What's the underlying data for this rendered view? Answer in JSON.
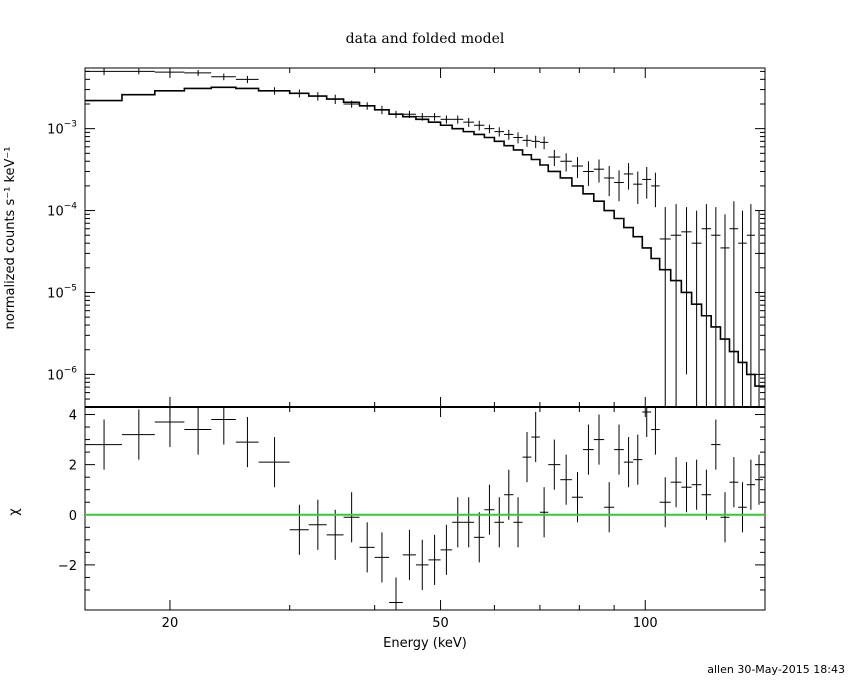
{
  "chart_data": [
    {
      "type": "scatter",
      "title": "data and folded model",
      "ylabel": "normalized counts s⁻¹ keV⁻¹",
      "yscale": "log",
      "xscale": "log",
      "xlim": [
        15,
        150
      ],
      "ylim": [
        4e-07,
        0.0055
      ],
      "yticklabels": [
        {
          "v": 0.001,
          "mant": "10",
          "exp": "−3"
        },
        {
          "v": 0.0001,
          "mant": "10",
          "exp": "−4"
        },
        {
          "v": 1e-05,
          "mant": "10",
          "exp": "−5"
        },
        {
          "v": 1e-06,
          "mant": "10",
          "exp": "−6"
        }
      ],
      "series": [
        {
          "kind": "data-crosses",
          "points": [
            [
              16.0,
              15.0,
              17.0,
              0.005,
              0.0045,
              0.0055
            ],
            [
              18.0,
              17.0,
              19.0,
              0.005,
              0.0046,
              0.0054
            ],
            [
              20.0,
              19.0,
              21.0,
              0.0049,
              0.0045,
              0.0053
            ],
            [
              22.0,
              21.0,
              23.0,
              0.0048,
              0.0044,
              0.0052
            ],
            [
              24.0,
              23.0,
              25.0,
              0.0043,
              0.0039,
              0.0047
            ],
            [
              26.0,
              25.0,
              27.0,
              0.004,
              0.0036,
              0.0044
            ],
            [
              28.5,
              27.0,
              30.0,
              0.0029,
              0.0026,
              0.0032
            ],
            [
              31.0,
              30.0,
              32.0,
              0.0027,
              0.0024,
              0.003
            ],
            [
              33.0,
              32.0,
              34.0,
              0.0025,
              0.0022,
              0.0028
            ],
            [
              35.0,
              34.0,
              36.0,
              0.0023,
              0.002,
              0.0026
            ],
            [
              37.0,
              36.0,
              38.0,
              0.002,
              0.0018,
              0.0022
            ],
            [
              39.0,
              38.0,
              40.0,
              0.0019,
              0.0017,
              0.0021
            ],
            [
              41.0,
              40.0,
              42.0,
              0.0017,
              0.0015,
              0.0019
            ],
            [
              43.0,
              42.0,
              44.0,
              0.0015,
              0.00135,
              0.00165
            ],
            [
              45.0,
              44.0,
              46.0,
              0.0015,
              0.00135,
              0.00165
            ],
            [
              47.0,
              46.0,
              48.0,
              0.0014,
              0.00125,
              0.00155
            ],
            [
              49.0,
              48.0,
              50.0,
              0.0014,
              0.00125,
              0.00155
            ],
            [
              51.0,
              50.0,
              52.0,
              0.0013,
              0.00115,
              0.00145
            ],
            [
              53.0,
              52.0,
              54.0,
              0.0013,
              0.00115,
              0.00145
            ],
            [
              55.0,
              54.0,
              56.0,
              0.0012,
              0.00105,
              0.00135
            ],
            [
              57.0,
              56.0,
              58.0,
              0.0011,
              0.00095,
              0.00125
            ],
            [
              59.0,
              58.0,
              60.0,
              0.001,
              0.00088,
              0.00112
            ],
            [
              61.0,
              60.0,
              62.0,
              0.00092,
              0.0008,
              0.00104
            ],
            [
              63.0,
              62.0,
              64.0,
              0.00085,
              0.00073,
              0.00097
            ],
            [
              65.0,
              64.0,
              66.0,
              0.00078,
              0.00066,
              0.0009
            ],
            [
              67.0,
              66.0,
              68.0,
              0.00072,
              0.0006,
              0.00084
            ],
            [
              69.0,
              68.0,
              70.0,
              0.0007,
              0.00058,
              0.00082
            ],
            [
              71.0,
              70.0,
              72.0,
              0.00068,
              0.00056,
              0.0008
            ],
            [
              73.5,
              72.0,
              75.0,
              0.00045,
              0.00035,
              0.00055
            ],
            [
              76.5,
              75.0,
              78.0,
              0.0004,
              0.0003,
              0.0005
            ],
            [
              79.5,
              78.0,
              81.0,
              0.00035,
              0.00025,
              0.00045
            ],
            [
              82.5,
              81.0,
              84.0,
              0.0003,
              0.0002,
              0.0004
            ],
            [
              85.5,
              84.0,
              87.0,
              0.00032,
              0.00022,
              0.00042
            ],
            [
              88.5,
              87.0,
              90.0,
              0.00025,
              0.00015,
              0.00035
            ],
            [
              91.5,
              90.0,
              93.0,
              0.00022,
              0.00013,
              0.00031
            ],
            [
              94.5,
              93.0,
              96.0,
              0.00028,
              0.00018,
              0.00038
            ],
            [
              97.5,
              96.0,
              99.0,
              0.00021,
              0.00012,
              0.0003
            ],
            [
              100.5,
              99.0,
              102.0,
              0.00024,
              0.00014,
              0.00034
            ],
            [
              103.5,
              102.0,
              105.0,
              0.0002,
              0.00011,
              0.00029
            ],
            [
              107.0,
              105.0,
              109.0,
              4.5e-05,
              4e-07,
              0.00011
            ],
            [
              111.0,
              109.0,
              113.0,
              5e-05,
              4e-07,
              0.00012
            ],
            [
              115.0,
              113.0,
              117.0,
              5.5e-05,
              1e-06,
              0.00011
            ],
            [
              119.0,
              117.0,
              121.0,
              4e-05,
              4e-07,
              0.0001
            ],
            [
              123.0,
              121.0,
              125.0,
              6e-05,
              4e-07,
              0.00012
            ],
            [
              127.0,
              125.0,
              129.0,
              5e-05,
              4e-07,
              0.00011
            ],
            [
              131.0,
              129.0,
              133.0,
              3.5e-05,
              4e-07,
              9e-05
            ],
            [
              135.0,
              133.0,
              137.0,
              6e-05,
              4e-07,
              0.00013
            ],
            [
              139.0,
              137.0,
              141.0,
              4e-05,
              4e-07,
              0.0001
            ],
            [
              143.0,
              141.0,
              145.0,
              5e-05,
              4e-07,
              0.00012
            ],
            [
              147.0,
              145.0,
              149.0,
              3e-05,
              4e-07,
              0.0001
            ]
          ]
        },
        {
          "kind": "model-step",
          "step": [
            [
              15.0,
              0.0022
            ],
            [
              17.0,
              0.0026
            ],
            [
              19.0,
              0.0029
            ],
            [
              21.0,
              0.0031
            ],
            [
              23.0,
              0.0032
            ],
            [
              25.0,
              0.0031
            ],
            [
              27.0,
              0.0029
            ],
            [
              30.0,
              0.0027
            ],
            [
              32.0,
              0.0025
            ],
            [
              34.0,
              0.0023
            ],
            [
              36.0,
              0.0021
            ],
            [
              38.0,
              0.0019
            ],
            [
              40.0,
              0.0017
            ],
            [
              42.0,
              0.0015
            ],
            [
              44.0,
              0.0014
            ],
            [
              46.0,
              0.0013
            ],
            [
              48.0,
              0.0012
            ],
            [
              50.0,
              0.0011
            ],
            [
              52.0,
              0.001
            ],
            [
              54.0,
              0.00092
            ],
            [
              56.0,
              0.00085
            ],
            [
              58.0,
              0.00078
            ],
            [
              60.0,
              0.0007
            ],
            [
              62.0,
              0.00062
            ],
            [
              64.0,
              0.00055
            ],
            [
              66.0,
              0.00048
            ],
            [
              68.0,
              0.00042
            ],
            [
              70.0,
              0.00036
            ],
            [
              72.0,
              0.0003
            ],
            [
              75.0,
              0.00025
            ],
            [
              78.0,
              0.0002
            ],
            [
              81.0,
              0.00016
            ],
            [
              84.0,
              0.00013
            ],
            [
              87.0,
              0.0001
            ],
            [
              90.0,
              8e-05
            ],
            [
              93.0,
              6.2e-05
            ],
            [
              96.0,
              4.8e-05
            ],
            [
              99.0,
              3.5e-05
            ],
            [
              102.0,
              2.6e-05
            ],
            [
              105.0,
              1.9e-05
            ],
            [
              109.0,
              1.4e-05
            ],
            [
              113.0,
              1e-05
            ],
            [
              117.0,
              7.2e-06
            ],
            [
              121.0,
              5.2e-06
            ],
            [
              125.0,
              3.8e-06
            ],
            [
              129.0,
              2.7e-06
            ],
            [
              133.0,
              1.9e-06
            ],
            [
              137.0,
              1.4e-06
            ],
            [
              141.0,
              1e-06
            ],
            [
              145.0,
              7.2e-07
            ],
            [
              150.0,
              7.2e-07
            ]
          ]
        }
      ]
    },
    {
      "type": "scatter",
      "xlabel": "Energy (keV)",
      "ylabel": "χ",
      "xscale": "log",
      "xlim": [
        15,
        150
      ],
      "ylim": [
        -3.8,
        4.3
      ],
      "xticks": [
        {
          "v": 20,
          "label": "20"
        },
        {
          "v": 50,
          "label": "50"
        },
        {
          "v": 100,
          "label": "100"
        }
      ],
      "yticks": [
        {
          "v": 4,
          "label": "4"
        },
        {
          "v": 2,
          "label": "2"
        },
        {
          "v": 0,
          "label": "0"
        },
        {
          "v": -2,
          "label": "−2"
        }
      ],
      "reference_line": {
        "y": 0,
        "color": "#33cc33"
      },
      "residuals": [
        [
          16.0,
          15.0,
          17.0,
          2.8,
          1.8,
          3.8
        ],
        [
          18.0,
          17.0,
          19.0,
          3.2,
          2.2,
          4.2
        ],
        [
          20.0,
          19.0,
          21.0,
          3.7,
          2.7,
          4.3
        ],
        [
          22.0,
          21.0,
          23.0,
          3.4,
          2.4,
          4.3
        ],
        [
          24.0,
          23.0,
          25.0,
          3.8,
          2.8,
          4.3
        ],
        [
          26.0,
          25.0,
          27.0,
          2.9,
          1.9,
          3.9
        ],
        [
          28.5,
          27.0,
          30.0,
          2.1,
          1.1,
          3.1
        ],
        [
          31.0,
          30.0,
          32.0,
          -0.6,
          -1.6,
          0.4
        ],
        [
          33.0,
          32.0,
          34.0,
          -0.4,
          -1.4,
          0.6
        ],
        [
          35.0,
          34.0,
          36.0,
          -0.8,
          -1.8,
          0.2
        ],
        [
          37.0,
          36.0,
          38.0,
          -0.1,
          -1.1,
          0.9
        ],
        [
          39.0,
          38.0,
          40.0,
          -1.3,
          -2.3,
          -0.3
        ],
        [
          41.0,
          40.0,
          42.0,
          -1.7,
          -2.7,
          -0.7
        ],
        [
          43.0,
          42.0,
          44.0,
          -3.5,
          -3.8,
          -2.5
        ],
        [
          45.0,
          44.0,
          46.0,
          -1.6,
          -2.6,
          -0.6
        ],
        [
          47.0,
          46.0,
          48.0,
          -2.0,
          -3.0,
          -1.0
        ],
        [
          49.0,
          48.0,
          50.0,
          -1.8,
          -2.8,
          -0.8
        ],
        [
          51.0,
          50.0,
          52.0,
          -1.4,
          -2.4,
          -0.4
        ],
        [
          53.0,
          52.0,
          54.0,
          -0.3,
          -1.3,
          0.7
        ],
        [
          55.0,
          54.0,
          56.0,
          -0.3,
          -1.3,
          0.7
        ],
        [
          57.0,
          56.0,
          58.0,
          -0.9,
          -1.9,
          0.1
        ],
        [
          59.0,
          58.0,
          60.0,
          0.2,
          -0.8,
          1.2
        ],
        [
          61.0,
          60.0,
          62.0,
          -0.3,
          -1.3,
          0.7
        ],
        [
          63.0,
          62.0,
          64.0,
          0.8,
          -0.2,
          1.8
        ],
        [
          65.0,
          64.0,
          66.0,
          -0.3,
          -1.3,
          0.7
        ],
        [
          67.0,
          66.0,
          68.0,
          2.3,
          1.3,
          3.3
        ],
        [
          69.0,
          68.0,
          70.0,
          3.1,
          2.1,
          4.1
        ],
        [
          71.0,
          70.0,
          72.0,
          0.1,
          -0.9,
          1.1
        ],
        [
          73.5,
          72.0,
          75.0,
          2.0,
          1.0,
          3.0
        ],
        [
          76.5,
          75.0,
          78.0,
          1.4,
          0.4,
          2.4
        ],
        [
          79.5,
          78.0,
          81.0,
          0.7,
          -0.3,
          1.7
        ],
        [
          82.5,
          81.0,
          84.0,
          2.6,
          1.6,
          3.6
        ],
        [
          85.5,
          84.0,
          87.0,
          3.0,
          2.0,
          4.0
        ],
        [
          88.5,
          87.0,
          90.0,
          0.3,
          -0.7,
          1.3
        ],
        [
          91.5,
          90.0,
          93.0,
          2.6,
          1.6,
          3.6
        ],
        [
          94.5,
          93.0,
          96.0,
          2.1,
          1.1,
          3.1
        ],
        [
          97.5,
          96.0,
          99.0,
          2.2,
          1.2,
          3.2
        ],
        [
          100.5,
          99.0,
          102.0,
          4.1,
          3.1,
          4.3
        ],
        [
          103.5,
          102.0,
          105.0,
          3.4,
          2.4,
          4.3
        ],
        [
          107.0,
          105.0,
          109.0,
          0.5,
          -0.5,
          1.5
        ],
        [
          111.0,
          109.0,
          113.0,
          1.3,
          0.3,
          2.3
        ],
        [
          115.0,
          113.0,
          117.0,
          1.1,
          0.1,
          2.1
        ],
        [
          119.0,
          117.0,
          121.0,
          1.2,
          0.2,
          2.2
        ],
        [
          123.0,
          121.0,
          125.0,
          0.8,
          -0.2,
          1.8
        ],
        [
          127.0,
          125.0,
          129.0,
          2.8,
          1.8,
          3.8
        ],
        [
          131.0,
          129.0,
          133.0,
          -0.1,
          -1.1,
          0.9
        ],
        [
          135.0,
          133.0,
          137.0,
          1.3,
          0.3,
          2.3
        ],
        [
          139.0,
          137.0,
          141.0,
          0.3,
          -0.7,
          1.3
        ],
        [
          143.0,
          141.0,
          145.0,
          1.2,
          0.2,
          2.2
        ],
        [
          147.0,
          145.0,
          149.0,
          1.4,
          0.4,
          2.4
        ]
      ]
    }
  ],
  "footer": {
    "stamp": "allen 30-May-2015 18:43"
  }
}
